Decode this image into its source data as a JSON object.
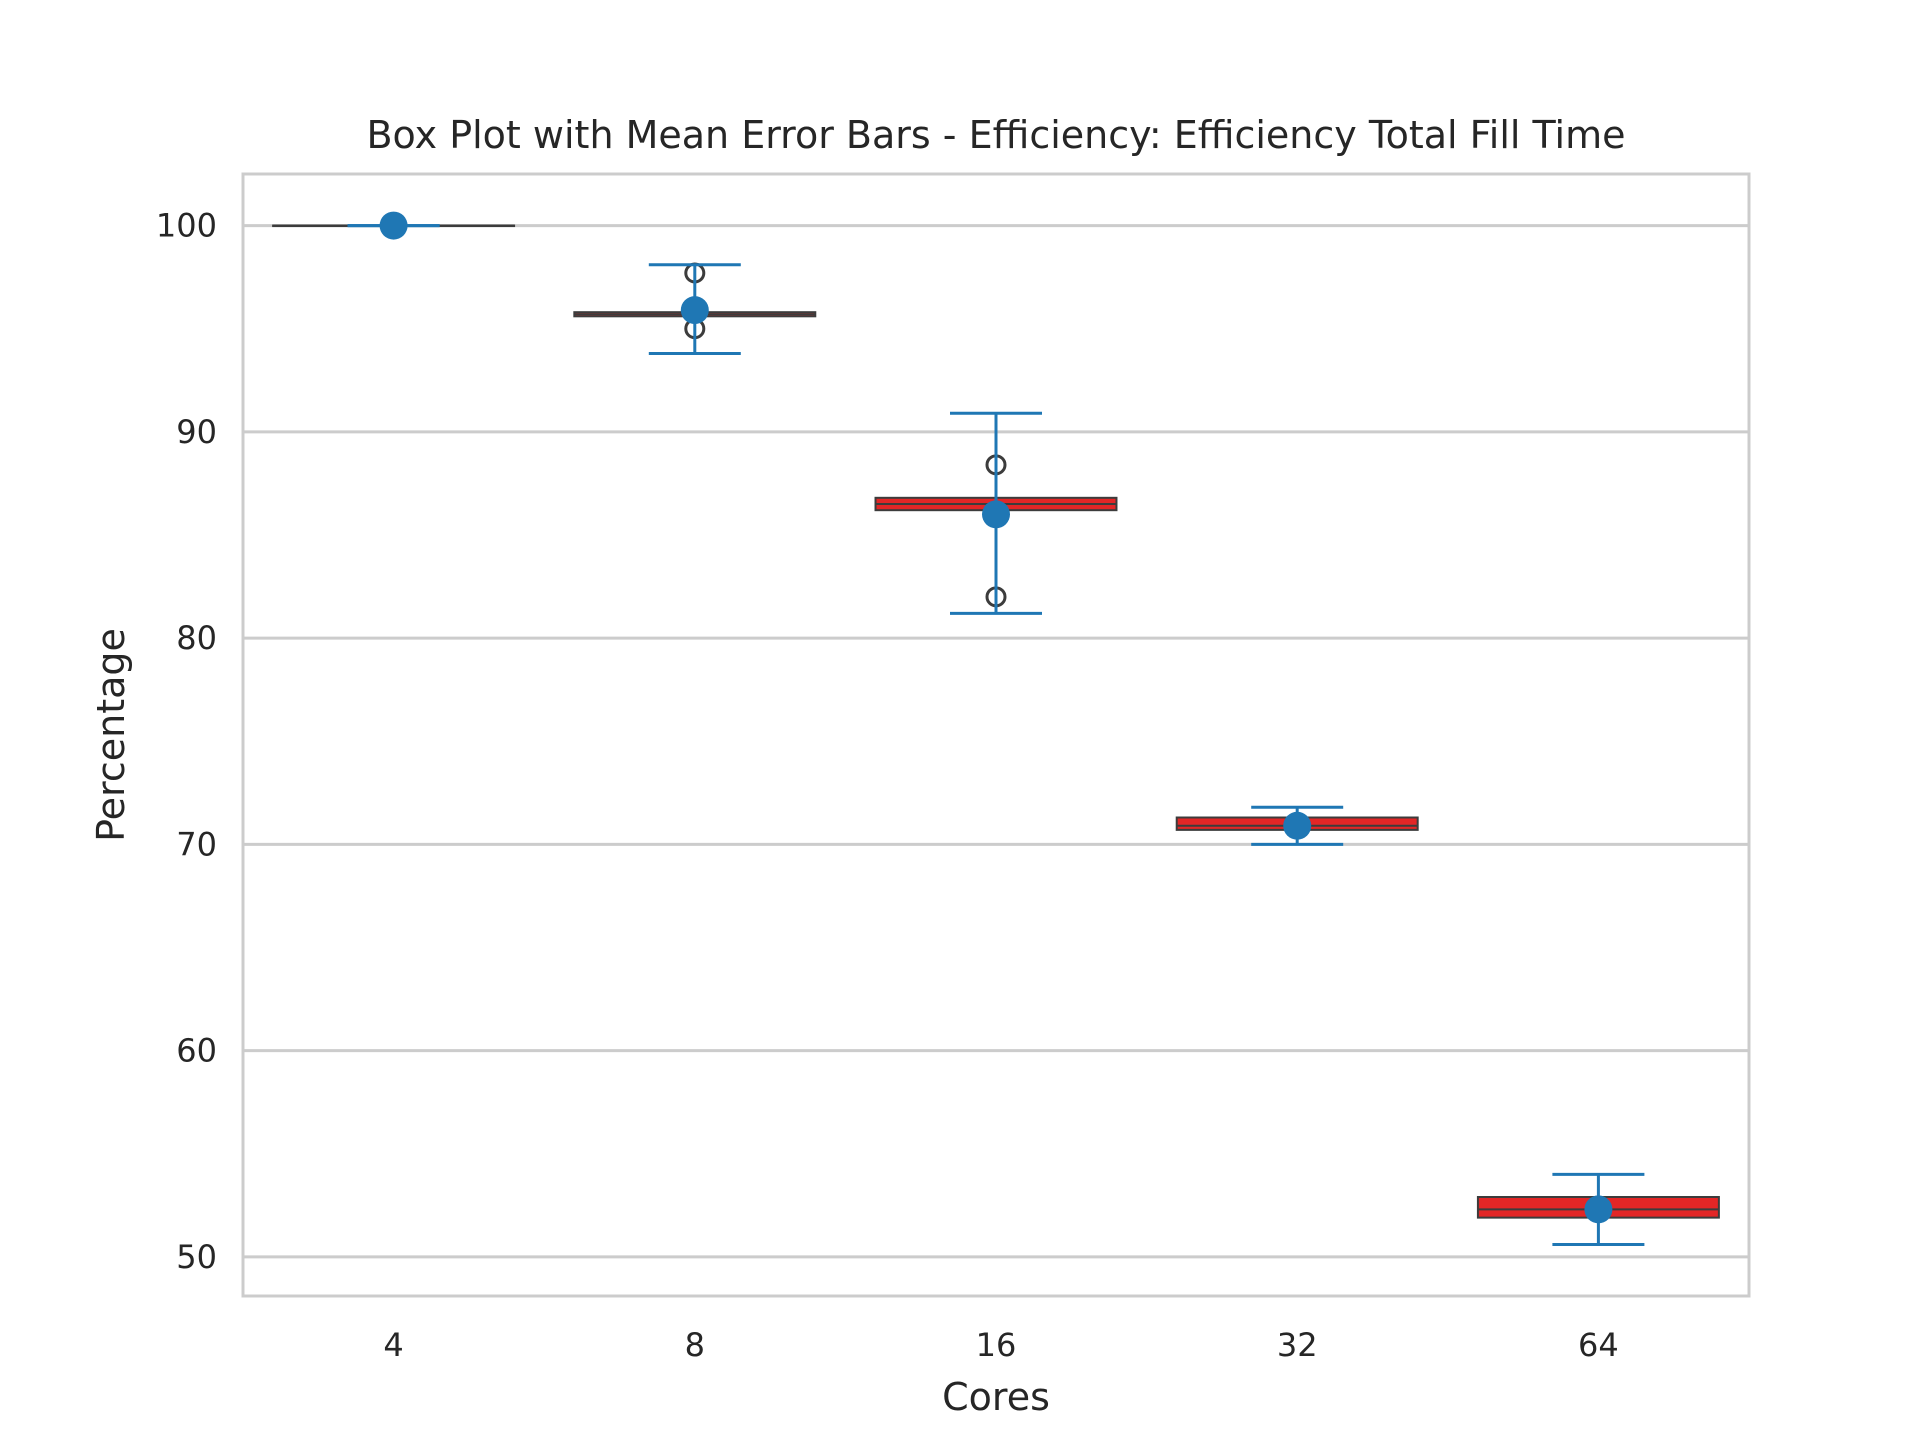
{
  "chart_data": {
    "type": "box",
    "title": "Box Plot with Mean Error Bars - Efficiency: Efficiency Total Fill Time",
    "xlabel": "Cores",
    "ylabel": "Percentage",
    "categories": [
      "4",
      "8",
      "16",
      "32",
      "64"
    ],
    "ylim": [
      48.1,
      102.5
    ],
    "yticks": [
      50,
      60,
      70,
      80,
      90,
      100
    ],
    "grid": true,
    "colors": {
      "box_fill": "#e32626",
      "box_edge": "#3c3c3c",
      "mean": "#1f77b4",
      "grid": "#cccccc",
      "frame": "#cccccc",
      "outlier": "#3c3c3c"
    },
    "boxes": [
      {
        "category": "4",
        "q1": 100.0,
        "median": 100.0,
        "q3": 100.0,
        "whisker_low": 100.0,
        "whisker_high": 100.0,
        "outliers": []
      },
      {
        "category": "8",
        "q1": 95.6,
        "median": 95.7,
        "q3": 95.8,
        "whisker_low": 95.6,
        "whisker_high": 95.8,
        "outliers": [
          97.7,
          95.0
        ]
      },
      {
        "category": "16",
        "q1": 86.2,
        "median": 86.5,
        "q3": 86.8,
        "whisker_low": 86.2,
        "whisker_high": 86.8,
        "outliers": [
          88.4,
          82.0
        ]
      },
      {
        "category": "32",
        "q1": 70.7,
        "median": 70.9,
        "q3": 71.3,
        "whisker_low": 70.7,
        "whisker_high": 71.3,
        "outliers": []
      },
      {
        "category": "64",
        "q1": 51.9,
        "median": 52.3,
        "q3": 52.9,
        "whisker_low": 51.9,
        "whisker_high": 52.9,
        "outliers": []
      }
    ],
    "means": [
      {
        "category": "4",
        "mean": 100.0,
        "err_low": 100.0,
        "err_high": 100.0
      },
      {
        "category": "8",
        "mean": 95.9,
        "err_low": 93.8,
        "err_high": 98.1
      },
      {
        "category": "16",
        "mean": 86.0,
        "err_low": 81.2,
        "err_high": 90.9
      },
      {
        "category": "32",
        "mean": 70.9,
        "err_low": 70.0,
        "err_high": 71.8
      },
      {
        "category": "64",
        "mean": 52.3,
        "err_low": 50.6,
        "err_high": 54.0
      }
    ]
  }
}
